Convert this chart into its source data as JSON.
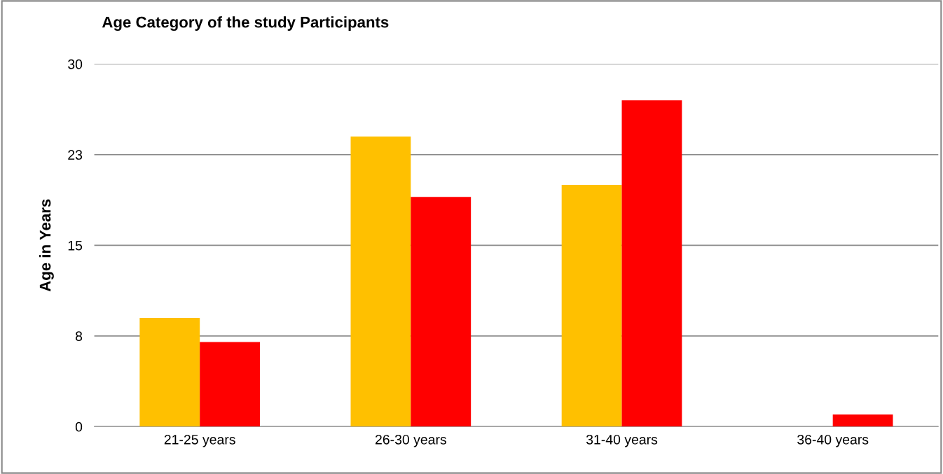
{
  "chart_data": {
    "type": "bar",
    "title": "Age Category of the study Participants",
    "ylabel": "Age in Years",
    "categories": [
      "21-25 years",
      "26-30 years",
      "31-40 years",
      "36-40 years"
    ],
    "series": [
      {
        "color": "#ffc000",
        "values": [
          9,
          24,
          20,
          0
        ]
      },
      {
        "color": "#ff0000",
        "values": [
          7,
          19,
          27,
          1
        ]
      }
    ],
    "ylim": [
      0,
      30
    ],
    "yticks": [
      0,
      {
        "value": 7.5,
        "label": "8"
      },
      15,
      {
        "value": 22.5,
        "label": "23"
      },
      30
    ],
    "grid": "y"
  }
}
